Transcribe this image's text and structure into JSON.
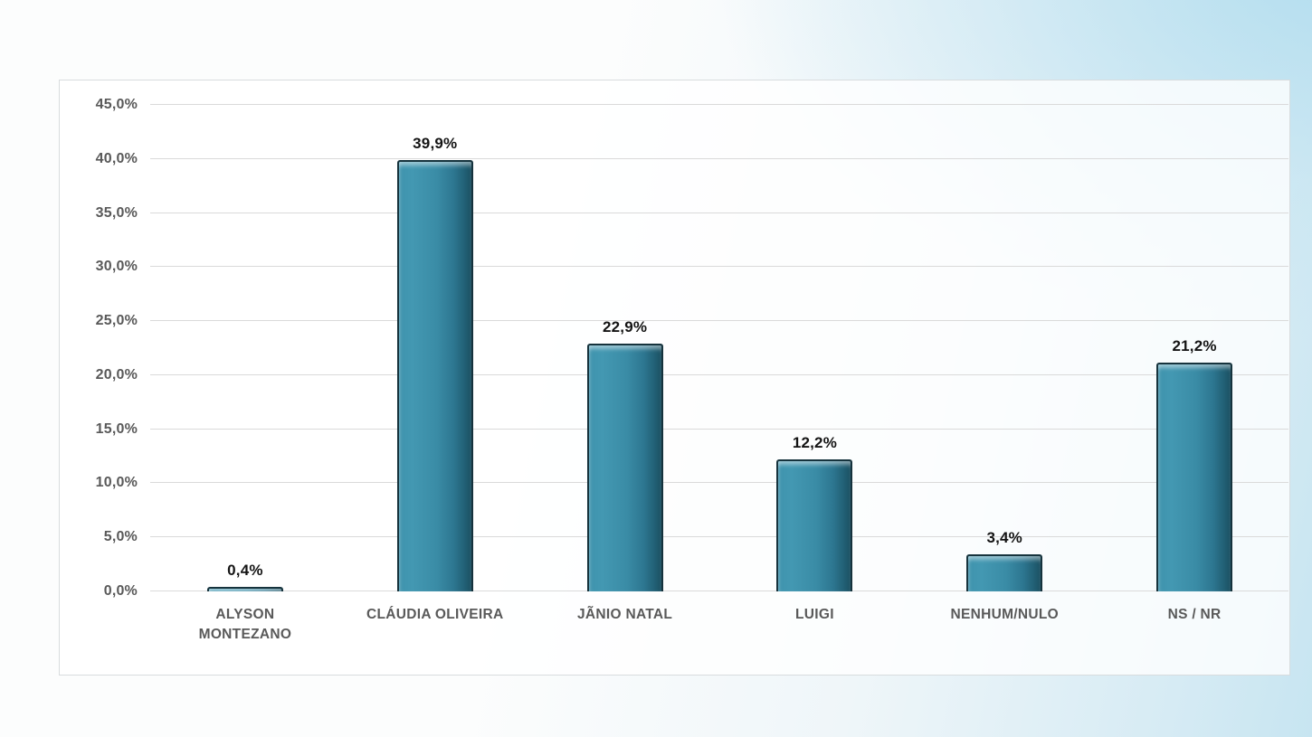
{
  "page": {
    "background_base_color": "#fcfdfd",
    "background_accent_color": "#c7e5f1",
    "chart_frame_color": "#d8dcde"
  },
  "chart_data": {
    "type": "bar",
    "title": "",
    "xlabel": "",
    "ylabel": "",
    "categories": [
      "ALYSON\nMONTEZANO",
      "CLÁUDIA OLIVEIRA",
      "JÃNIO NATAL",
      "LUIGI",
      "NENHUM/NULO",
      "NS / NR"
    ],
    "values": [
      0.4,
      39.9,
      22.9,
      12.2,
      3.4,
      21.2
    ],
    "value_labels": [
      "0,4%",
      "39,9%",
      "22,9%",
      "12,2%",
      "3,4%",
      "21,2%"
    ],
    "y_ticks": [
      {
        "value": 0,
        "label": "0,0%"
      },
      {
        "value": 5,
        "label": "5,0%"
      },
      {
        "value": 10,
        "label": "10,0%"
      },
      {
        "value": 15,
        "label": "15,0%"
      },
      {
        "value": 20,
        "label": "20,0%"
      },
      {
        "value": 25,
        "label": "25,0%"
      },
      {
        "value": 30,
        "label": "30,0%"
      },
      {
        "value": 35,
        "label": "35,0%"
      },
      {
        "value": 40,
        "label": "40,0%"
      },
      {
        "value": 45,
        "label": "45,0%"
      }
    ],
    "ylim": [
      0,
      45
    ],
    "grid": true,
    "legend": "none",
    "bar_color": "#3a8ca6",
    "bar_edge_color": "#16333d",
    "gridline_color": "#dadada",
    "axis_label_color": "#595959",
    "value_label_color": "#141414"
  }
}
